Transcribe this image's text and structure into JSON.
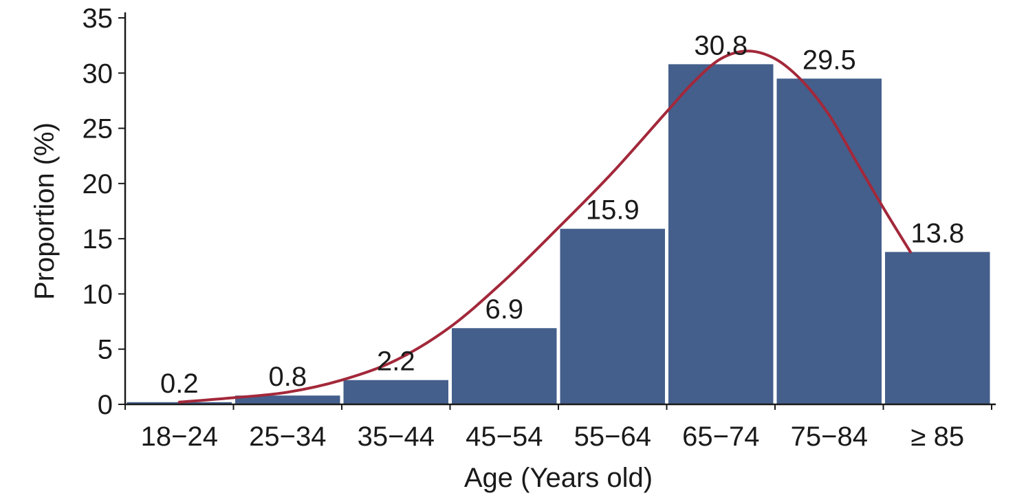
{
  "chart_data": {
    "type": "bar",
    "categories": [
      "18−24",
      "25−34",
      "35−44",
      "45−54",
      "55−64",
      "65−74",
      "75−84",
      "≥ 85"
    ],
    "values": [
      0.2,
      0.8,
      2.2,
      6.9,
      15.9,
      30.8,
      29.5,
      13.8
    ],
    "data_labels": [
      "0.2",
      "0.8",
      "2.2",
      "6.9",
      "15.9",
      "30.8",
      "29.5",
      "13.8"
    ],
    "xlabel": "Age (Years old)",
    "ylabel": "Proportion (%)",
    "ylim": [
      0,
      35
    ],
    "yticks": [
      0,
      5,
      10,
      15,
      20,
      25,
      30,
      35
    ],
    "grid": false,
    "legend": "none",
    "bar_color": "#445f8c",
    "curve_color": "#a3283a",
    "trend_curve": {
      "x": [
        0.5,
        1.0,
        1.5,
        2.0,
        2.5,
        3.0,
        3.5,
        4.0,
        4.5,
        5.0,
        5.25,
        5.5,
        5.75,
        6.0,
        6.25,
        6.5,
        6.75,
        7.0,
        7.25,
        7.5
      ],
      "y": [
        0.2,
        0.6,
        1.1,
        2.2,
        4.0,
        7.0,
        11.2,
        16.0,
        21.0,
        26.5,
        29.2,
        31.3,
        32.0,
        31.3,
        29.3,
        26.2,
        22.0,
        17.8,
        13.8,
        13.8
      ]
    }
  }
}
